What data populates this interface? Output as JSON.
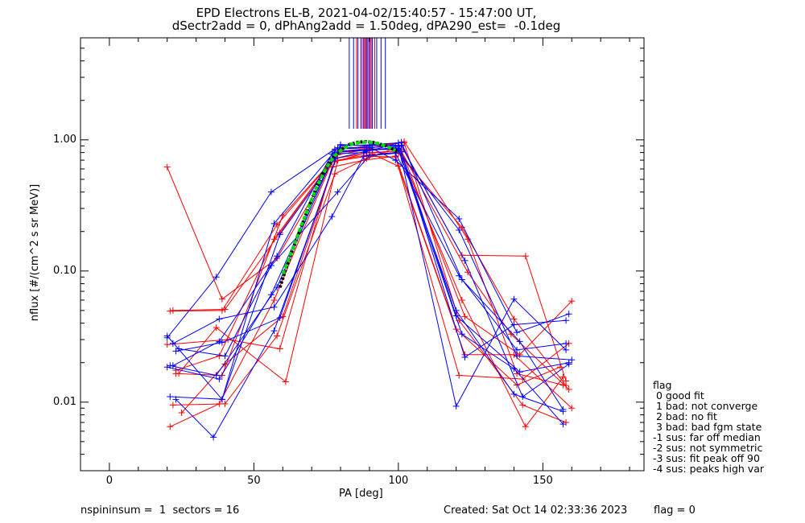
{
  "chart_data": {
    "type": "line",
    "title": "EPD Electrons EL-B, 2021-04-02/15:40:57 - 15:47:00 UT,",
    "subtitle": "dSectr2add = 0, dPhAng2add = 1.50deg, dPA290_est=  -0.1deg",
    "xlabel": "PA [deg]",
    "ylabel": "nflux [#/(cm^2 s sr MeV)]",
    "xlim": [
      -10,
      185
    ],
    "ylim": [
      0.003,
      6.0
    ],
    "yscale": "log",
    "x_ticks": [
      "0",
      "50",
      "100",
      "150"
    ],
    "y_ticks": [
      "0.01",
      "0.10",
      "1.00"
    ],
    "colors": {
      "red": "#ff0000",
      "blue": "#0000ff",
      "green": "#00dd00",
      "black": "#000000"
    },
    "series_red": [
      {
        "x": [
          20,
          39,
          58,
          78,
          90,
          100,
          122,
          140,
          158
        ],
        "y": [
          0.62,
          0.061,
          0.125,
          0.72,
          0.8,
          0.79,
          0.215,
          0.043,
          0.0134
        ]
      },
      {
        "x": [
          22,
          40,
          59,
          79,
          91,
          101,
          123,
          142,
          160
        ],
        "y": [
          0.05,
          0.051,
          0.195,
          0.8,
          0.85,
          0.84,
          0.045,
          0.023,
          0.059
        ]
      },
      {
        "x": [
          21,
          38,
          57,
          77,
          89,
          99,
          121,
          143,
          159
        ],
        "y": [
          0.0065,
          0.0097,
          0.06,
          0.68,
          0.75,
          0.74,
          0.016,
          0.015,
          0.028
        ]
      },
      {
        "x": [
          23,
          39,
          60,
          80,
          90,
          102,
          124,
          141,
          157
        ],
        "y": [
          0.0165,
          0.016,
          0.265,
          0.82,
          0.86,
          0.97,
          0.175,
          0.0165,
          0.0135
        ]
      },
      {
        "x": [
          22,
          40,
          58,
          78,
          89,
          101,
          122,
          144,
          158
        ],
        "y": [
          0.0095,
          0.0097,
          0.032,
          0.55,
          0.72,
          0.9,
          0.132,
          0.13,
          0.0145
        ]
      },
      {
        "x": [
          24,
          37,
          61,
          79,
          91,
          100,
          123,
          140,
          160
        ],
        "y": [
          0.0165,
          0.037,
          0.0143,
          0.7,
          0.78,
          0.63,
          0.023,
          0.023,
          0.009
        ]
      },
      {
        "x": [
          20,
          41,
          59,
          77,
          88,
          99,
          120,
          141,
          156
        ],
        "y": [
          0.0275,
          0.03,
          0.0255,
          0.62,
          0.7,
          0.75,
          0.036,
          0.0135,
          0.0185
        ]
      },
      {
        "x": [
          23,
          38,
          57,
          80,
          90,
          102,
          121,
          143,
          158
        ],
        "y": [
          0.0175,
          0.0225,
          0.175,
          0.85,
          0.9,
          0.95,
          0.042,
          0.0095,
          0.007
        ]
      },
      {
        "x": [
          25,
          40,
          60,
          78,
          89,
          101,
          124,
          139,
          159
        ],
        "y": [
          0.0083,
          0.0195,
          0.045,
          0.68,
          0.8,
          0.82,
          0.098,
          0.033,
          0.0125
        ]
      },
      {
        "x": [
          21,
          39,
          58,
          79,
          90,
          100,
          122,
          144,
          157
        ],
        "y": [
          0.0495,
          0.05,
          0.225,
          0.77,
          0.85,
          0.86,
          0.06,
          0.0065,
          0.0155
        ]
      }
    ],
    "series_blue": [
      {
        "x": [
          20,
          37,
          56,
          78,
          89,
          100,
          120,
          140,
          158
        ],
        "y": [
          0.031,
          0.09,
          0.4,
          0.85,
          0.87,
          0.9,
          0.0093,
          0.061,
          0.025
        ]
      },
      {
        "x": [
          21,
          39,
          57,
          79,
          90,
          99,
          121,
          141,
          159
        ],
        "y": [
          0.011,
          0.0105,
          0.23,
          0.87,
          0.88,
          0.7,
          0.25,
          0.034,
          0.047
        ]
      },
      {
        "x": [
          22,
          38,
          58,
          77,
          88,
          101,
          122,
          142,
          157
        ],
        "y": [
          0.019,
          0.029,
          0.13,
          0.78,
          0.8,
          0.96,
          0.086,
          0.029,
          0.0088
        ]
      },
      {
        "x": [
          23,
          36,
          57,
          80,
          91,
          100,
          123,
          140,
          158
        ],
        "y": [
          0.0105,
          0.0054,
          0.035,
          0.9,
          0.92,
          0.95,
          0.022,
          0.039,
          0.042
        ]
      },
      {
        "x": [
          20,
          39,
          59,
          78,
          89,
          99,
          121,
          141,
          160
        ],
        "y": [
          0.032,
          0.0105,
          0.19,
          0.72,
          0.82,
          0.88,
          0.205,
          0.0225,
          0.021
        ]
      },
      {
        "x": [
          24,
          40,
          56,
          79,
          90,
          101,
          120,
          142,
          159
        ],
        "y": [
          0.0255,
          0.0225,
          0.11,
          0.4,
          0.76,
          0.81,
          0.0455,
          0.017,
          0.02
        ]
      },
      {
        "x": [
          21,
          37,
          58,
          78,
          91,
          100,
          122,
          140,
          157
        ],
        "y": [
          0.019,
          0.016,
          0.075,
          0.8,
          0.84,
          0.86,
          0.033,
          0.018,
          0.0068
        ]
      },
      {
        "x": [
          22,
          38,
          57,
          77,
          88,
          99,
          121,
          141,
          158
        ],
        "y": [
          0.028,
          0.043,
          0.053,
          0.26,
          0.75,
          0.79,
          0.092,
          0.025,
          0.028
        ]
      },
      {
        "x": [
          23,
          39,
          59,
          80,
          90,
          101,
          123,
          143,
          159
        ],
        "y": [
          0.0245,
          0.0285,
          0.044,
          0.92,
          0.9,
          0.91,
          0.12,
          0.011,
          0.0195
        ]
      },
      {
        "x": [
          20,
          38,
          56,
          78,
          89,
          100,
          120,
          140,
          157
        ],
        "y": [
          0.0185,
          0.015,
          0.066,
          0.82,
          0.84,
          0.85,
          0.05,
          0.0115,
          0.0085
        ]
      }
    ],
    "fit_black": {
      "x": [
        59,
        62,
        65,
        68,
        71,
        74,
        77,
        80,
        83,
        86,
        89,
        92,
        95,
        98,
        100
      ],
      "y": [
        0.075,
        0.12,
        0.18,
        0.27,
        0.4,
        0.56,
        0.72,
        0.84,
        0.92,
        0.96,
        0.97,
        0.95,
        0.91,
        0.85,
        0.8
      ]
    },
    "fit_green": {
      "x": [
        60,
        63,
        66,
        69,
        72,
        75,
        78,
        81,
        84,
        87,
        90,
        93,
        96,
        99
      ],
      "y": [
        0.095,
        0.14,
        0.21,
        0.31,
        0.45,
        0.61,
        0.76,
        0.86,
        0.93,
        0.96,
        0.96,
        0.94,
        0.89,
        0.83
      ]
    },
    "peak_lines_blue_x": [
      83,
      84.5,
      86,
      87,
      88,
      88.7,
      89.4,
      90.2,
      91,
      92.5,
      94,
      95.5
    ],
    "peak_lines_red_x": [
      85.5,
      87.5,
      88.3,
      89,
      89.8,
      90.6,
      91.8
    ],
    "legend_title": "flag",
    "legend_items": [
      " 0 good fit",
      " 1 bad: not converge",
      " 2 bad: no fit",
      " 3 bad: bad fgm state",
      "-1 sus: far off median",
      "-2 sus: not symmetric",
      "-3 sus: fit peak off 90",
      "-4 sus: peaks high var"
    ]
  },
  "footer": {
    "left": "nspininsum =  1  sectors = 16",
    "center": "Created: Sat Oct 14 02:33:36 2023",
    "right": "flag = 0"
  }
}
